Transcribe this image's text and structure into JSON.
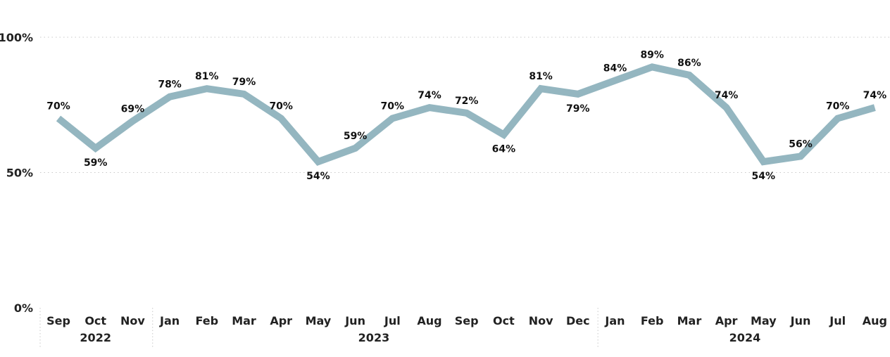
{
  "chart_data": {
    "type": "line",
    "ylim": [
      0,
      100
    ],
    "y_ticks": [
      "0%",
      "50%",
      "100%"
    ],
    "grid": true,
    "categories": [
      "Sep",
      "Oct",
      "Nov",
      "Jan",
      "Feb",
      "Mar",
      "Apr",
      "May",
      "Jun",
      "Jul",
      "Aug",
      "Sep",
      "Oct",
      "Nov",
      "Dec",
      "Jan",
      "Feb",
      "Mar",
      "Apr",
      "May",
      "Jun",
      "Jul",
      "Aug"
    ],
    "years": [
      {
        "label": "2022",
        "start": 0,
        "end": 2
      },
      {
        "label": "2023",
        "start": 3,
        "end": 14
      },
      {
        "label": "2024",
        "start": 15,
        "end": 22
      }
    ],
    "series": [
      {
        "values": [
          70,
          59,
          69,
          78,
          81,
          79,
          70,
          54,
          59,
          70,
          74,
          72,
          64,
          81,
          79,
          84,
          89,
          86,
          74,
          54,
          56,
          70,
          74
        ],
        "labels": [
          "70%",
          "59%",
          "69%",
          "78%",
          "81%",
          "79%",
          "70%",
          "54%",
          "59%",
          "70%",
          "74%",
          "72%",
          "64%",
          "81%",
          "79%",
          "84%",
          "89%",
          "86%",
          "74%",
          "54%",
          "56%",
          "70%",
          "74%"
        ],
        "color": "#94b6c0"
      }
    ]
  }
}
